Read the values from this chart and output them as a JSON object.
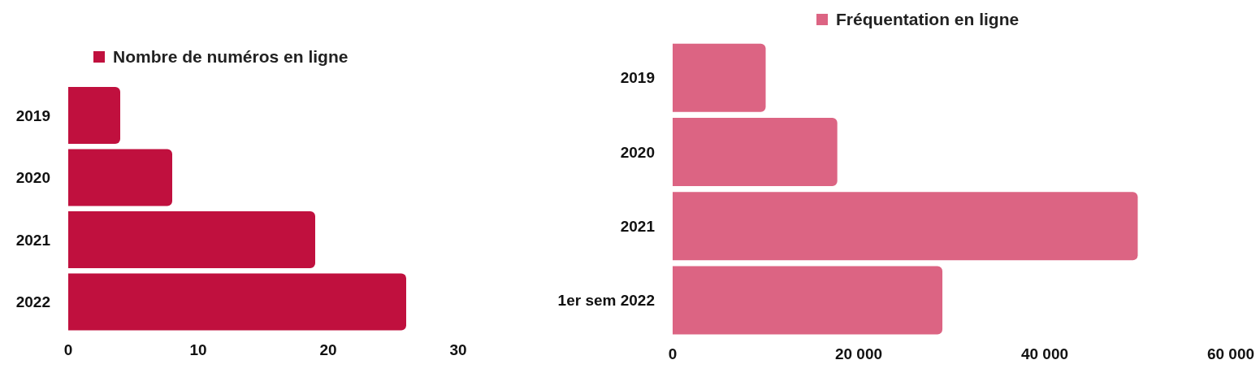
{
  "chart_data": [
    {
      "type": "bar",
      "orientation": "horizontal",
      "categories": [
        "2019",
        "2020",
        "2021",
        "2022"
      ],
      "series": [
        {
          "name": "Nombre de numéros en ligne",
          "color": "#c0103e",
          "values": [
            4,
            8,
            19,
            26
          ]
        }
      ],
      "xlim": [
        0,
        30
      ],
      "xticks": [
        0,
        10,
        20,
        30
      ],
      "grid": false,
      "legend": "top"
    },
    {
      "type": "bar",
      "orientation": "horizontal",
      "categories": [
        "2019",
        "2020",
        "2021",
        "1er sem 2022"
      ],
      "series": [
        {
          "name": "Fréquentation en ligne",
          "color": "#dc6483",
          "values": [
            10000,
            17700,
            50000,
            29000
          ]
        }
      ],
      "xlim": [
        0,
        60000
      ],
      "xticks": [
        0,
        {
          "value": 20000,
          "label": "20 000"
        },
        {
          "value": 40000,
          "label": "40 000"
        },
        {
          "value": 60000,
          "label": "60 000"
        }
      ],
      "grid": false,
      "legend": "top"
    }
  ]
}
